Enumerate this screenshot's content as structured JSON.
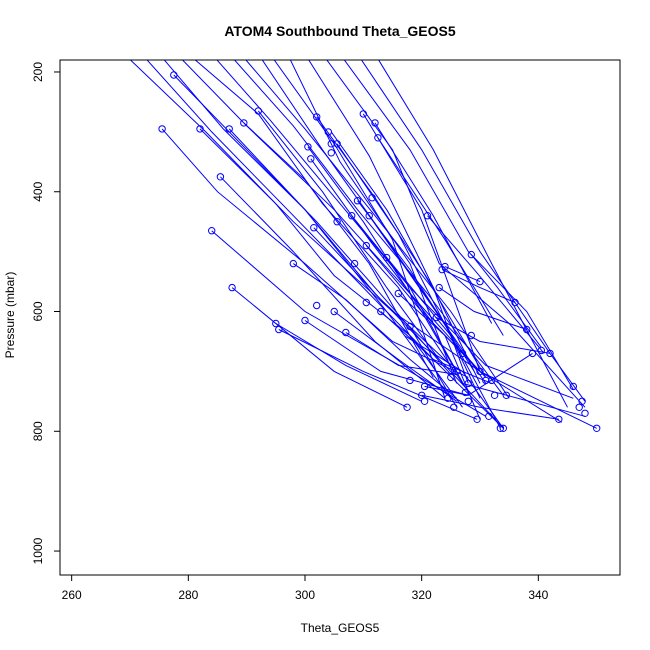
{
  "chart_data": {
    "type": "line",
    "title": "ATOM4 Southbound Theta_GEOS5",
    "xlabel": "Theta_GEOS5",
    "ylabel": "Pressure (mbar)",
    "xlim": [
      258,
      354
    ],
    "ylim": [
      1040,
      180
    ],
    "y_reversed": true,
    "x_ticks": [
      260,
      280,
      300,
      320,
      340
    ],
    "y_ticks": [
      200,
      400,
      600,
      800,
      1000
    ],
    "grid": false,
    "legend": "none",
    "line_color": "#0000ff",
    "profiles": [
      {
        "x": [
          269,
          283,
          298,
          315,
          330,
          350
        ],
        "y": [
          170,
          300,
          450,
          600,
          700,
          795
        ]
      },
      {
        "x": [
          272,
          284,
          296,
          310,
          322,
          334
        ],
        "y": [
          170,
          300,
          420,
          560,
          680,
          795
        ]
      },
      {
        "x": [
          275,
          286,
          300,
          312,
          324,
          334
        ],
        "y": [
          170,
          295,
          430,
          570,
          690,
          795
        ]
      },
      {
        "x": [
          278,
          290,
          305,
          318,
          330,
          344
        ],
        "y": [
          170,
          290,
          430,
          570,
          700,
          785
        ]
      },
      {
        "x": [
          280,
          292,
          303,
          316,
          327,
          348
        ],
        "y": [
          170,
          270,
          420,
          560,
          720,
          775
        ]
      },
      {
        "x": [
          284,
          294,
          306,
          318,
          331,
          346
        ],
        "y": [
          170,
          280,
          420,
          560,
          690,
          745
        ]
      },
      {
        "x": [
          287,
          298,
          309,
          321,
          334
        ],
        "y": [
          170,
          290,
          430,
          570,
          740
        ]
      },
      {
        "x": [
          289,
          300,
          312,
          325,
          335
        ],
        "y": [
          170,
          295,
          440,
          600,
          745
        ]
      },
      {
        "x": [
          292,
          303,
          314,
          324,
          330
        ],
        "y": [
          170,
          330,
          480,
          620,
          745
        ]
      },
      {
        "x": [
          294,
          305,
          315,
          324
        ],
        "y": [
          170,
          320,
          480,
          745
        ]
      },
      {
        "x": [
          297,
          306,
          318,
          326
        ],
        "y": [
          170,
          350,
          520,
          720
        ]
      },
      {
        "x": [
          300,
          311,
          320,
          330
        ],
        "y": [
          170,
          340,
          520,
          720
        ]
      },
      {
        "x": [
          303,
          315,
          323,
          335,
          348
        ],
        "y": [
          170,
          330,
          520,
          620,
          760
        ]
      },
      {
        "x": [
          306,
          318,
          328,
          338,
          346
        ],
        "y": [
          170,
          330,
          500,
          600,
          730
        ]
      },
      {
        "x": [
          309,
          320,
          330,
          342,
          348
        ],
        "y": [
          170,
          330,
          500,
          670,
          750
        ]
      },
      {
        "x": [
          312,
          322,
          332,
          345
        ],
        "y": [
          170,
          330,
          520,
          760
        ]
      },
      {
        "x": [
          275.5,
          285,
          300,
          315,
          328
        ],
        "y": [
          295,
          400,
          520,
          650,
          710
        ]
      },
      {
        "x": [
          277.5,
          290,
          302,
          312,
          325
        ],
        "y": [
          205,
          330,
          450,
          560,
          705
        ]
      },
      {
        "x": [
          282,
          295,
          305,
          318,
          327
        ],
        "y": [
          295,
          420,
          540,
          640,
          760
        ]
      },
      {
        "x": [
          284,
          300,
          318,
          331
        ],
        "y": [
          465,
          600,
          700,
          775
        ]
      },
      {
        "x": [
          285.5,
          298,
          312,
          324
        ],
        "y": [
          375,
          500,
          650,
          745
        ]
      },
      {
        "x": [
          287,
          300,
          314,
          325
        ],
        "y": [
          295,
          430,
          600,
          745
        ]
      },
      {
        "x": [
          287.5,
          305,
          317.5
        ],
        "y": [
          560,
          700,
          760
        ]
      },
      {
        "x": [
          289.5,
          300,
          311,
          322
        ],
        "y": [
          285,
          380,
          520,
          710
        ]
      },
      {
        "x": [
          292,
          303,
          314,
          323
        ],
        "y": [
          265,
          400,
          560,
          680
        ]
      },
      {
        "x": [
          295,
          307,
          320
        ],
        "y": [
          620,
          690,
          750
        ]
      },
      {
        "x": [
          295.5,
          310,
          329.5
        ],
        "y": [
          630,
          700,
          780
        ]
      },
      {
        "x": [
          298,
          307,
          318,
          326
        ],
        "y": [
          520,
          580,
          680,
          745
        ]
      },
      {
        "x": [
          300,
          313,
          328
        ],
        "y": [
          615,
          700,
          740
        ]
      },
      {
        "x": [
          300.5,
          310,
          320,
          331
        ],
        "y": [
          325,
          450,
          600,
          710
        ]
      },
      {
        "x": [
          301,
          311,
          322,
          330
        ],
        "y": [
          345,
          480,
          620,
          700
        ]
      },
      {
        "x": [
          301.5,
          313,
          325
        ],
        "y": [
          460,
          580,
          690
        ]
      },
      {
        "x": [
          302,
          312,
          322,
          328
        ],
        "y": [
          275,
          410,
          560,
          720
        ]
      },
      {
        "x": [
          304.5,
          314,
          323,
          331
        ],
        "y": [
          300,
          430,
          580,
          710
        ]
      },
      {
        "x": [
          305,
          316,
          326
        ],
        "y": [
          600,
          680,
          750
        ]
      },
      {
        "x": [
          305.5,
          316,
          326
        ],
        "y": [
          320,
          470,
          660
        ]
      },
      {
        "x": [
          307,
          316,
          326
        ],
        "y": [
          635,
          690,
          705
        ]
      },
      {
        "x": [
          308,
          318,
          326
        ],
        "y": [
          440,
          560,
          700
        ]
      },
      {
        "x": [
          309,
          318,
          329
        ],
        "y": [
          415,
          530,
          700
        ]
      },
      {
        "x": [
          310,
          320,
          330
        ],
        "y": [
          270,
          430,
          700
        ]
      },
      {
        "x": [
          310.5,
          320,
          328
        ],
        "y": [
          490,
          600,
          735
        ]
      },
      {
        "x": [
          311,
          321,
          331
        ],
        "y": [
          440,
          580,
          720
        ]
      },
      {
        "x": [
          312,
          322,
          332
        ],
        "y": [
          285,
          440,
          620
        ]
      },
      {
        "x": [
          312.5,
          324,
          334
        ],
        "y": [
          310,
          480,
          640
        ]
      },
      {
        "x": [
          313,
          322,
          332
        ],
        "y": [
          600,
          680,
          720
        ]
      },
      {
        "x": [
          314,
          325,
          333.5
        ],
        "y": [
          510,
          640,
          795
        ]
      },
      {
        "x": [
          316,
          324,
          330
        ],
        "y": [
          570,
          640,
          780
        ]
      },
      {
        "x": [
          317,
          327,
          334
        ],
        "y": [
          640,
          700,
          795
        ]
      },
      {
        "x": [
          318,
          326
        ],
        "y": [
          625,
          760
        ]
      },
      {
        "x": [
          320,
          330,
          343.5
        ],
        "y": [
          740,
          760,
          780
        ]
      },
      {
        "x": [
          320.5,
          328,
          339
        ],
        "y": [
          725,
          740,
          670
        ]
      },
      {
        "x": [
          321,
          329,
          341
        ],
        "y": [
          440,
          530,
          670
        ]
      },
      {
        "x": [
          322.5,
          330,
          342
        ],
        "y": [
          610,
          650,
          670
        ]
      },
      {
        "x": [
          323,
          329,
          338
        ],
        "y": [
          560,
          600,
          630
        ]
      },
      {
        "x": [
          323.5,
          330,
          336
        ],
        "y": [
          530,
          560,
          585
        ]
      },
      {
        "x": [
          324,
          330
        ],
        "y": [
          525,
          550
        ]
      },
      {
        "x": [
          328.5,
          333,
          340.5
        ],
        "y": [
          505,
          560,
          660
        ]
      }
    ],
    "points": [
      {
        "x": 277.5,
        "y": 205
      },
      {
        "x": 275.5,
        "y": 295
      },
      {
        "x": 282,
        "y": 295
      },
      {
        "x": 287,
        "y": 295
      },
      {
        "x": 289.5,
        "y": 285
      },
      {
        "x": 292,
        "y": 265
      },
      {
        "x": 285.5,
        "y": 375
      },
      {
        "x": 284,
        "y": 465
      },
      {
        "x": 287.5,
        "y": 560
      },
      {
        "x": 295,
        "y": 620
      },
      {
        "x": 295.5,
        "y": 630
      },
      {
        "x": 298,
        "y": 520
      },
      {
        "x": 300,
        "y": 615
      },
      {
        "x": 300.5,
        "y": 325
      },
      {
        "x": 301,
        "y": 345
      },
      {
        "x": 301.5,
        "y": 460
      },
      {
        "x": 302,
        "y": 275
      },
      {
        "x": 302,
        "y": 590
      },
      {
        "x": 304,
        "y": 300
      },
      {
        "x": 304.5,
        "y": 320
      },
      {
        "x": 304.5,
        "y": 335
      },
      {
        "x": 305,
        "y": 600
      },
      {
        "x": 305.5,
        "y": 320
      },
      {
        "x": 305.5,
        "y": 450
      },
      {
        "x": 307,
        "y": 635
      },
      {
        "x": 308,
        "y": 440
      },
      {
        "x": 308.5,
        "y": 520
      },
      {
        "x": 309,
        "y": 415
      },
      {
        "x": 310,
        "y": 270
      },
      {
        "x": 310.5,
        "y": 490
      },
      {
        "x": 310.5,
        "y": 585
      },
      {
        "x": 311,
        "y": 440
      },
      {
        "x": 311.5,
        "y": 410
      },
      {
        "x": 312,
        "y": 285
      },
      {
        "x": 312.5,
        "y": 310
      },
      {
        "x": 313,
        "y": 600
      },
      {
        "x": 314,
        "y": 510
      },
      {
        "x": 316,
        "y": 570
      },
      {
        "x": 317.5,
        "y": 760
      },
      {
        "x": 318,
        "y": 625
      },
      {
        "x": 318,
        "y": 715
      },
      {
        "x": 320,
        "y": 740
      },
      {
        "x": 320.5,
        "y": 725
      },
      {
        "x": 320.5,
        "y": 750
      },
      {
        "x": 321,
        "y": 440
      },
      {
        "x": 322.5,
        "y": 610
      },
      {
        "x": 323,
        "y": 560
      },
      {
        "x": 323.5,
        "y": 530
      },
      {
        "x": 324,
        "y": 525
      },
      {
        "x": 324.5,
        "y": 745
      },
      {
        "x": 325,
        "y": 710
      },
      {
        "x": 325.5,
        "y": 760
      },
      {
        "x": 326,
        "y": 700
      },
      {
        "x": 327,
        "y": 670
      },
      {
        "x": 327.5,
        "y": 735
      },
      {
        "x": 328,
        "y": 720
      },
      {
        "x": 328,
        "y": 750
      },
      {
        "x": 328.5,
        "y": 505
      },
      {
        "x": 328.5,
        "y": 640
      },
      {
        "x": 329.5,
        "y": 780
      },
      {
        "x": 330,
        "y": 700
      },
      {
        "x": 330,
        "y": 550
      },
      {
        "x": 331,
        "y": 715
      },
      {
        "x": 331.5,
        "y": 775
      },
      {
        "x": 332,
        "y": 715
      },
      {
        "x": 332.5,
        "y": 740
      },
      {
        "x": 333.5,
        "y": 795
      },
      {
        "x": 334,
        "y": 795
      },
      {
        "x": 334.5,
        "y": 740
      },
      {
        "x": 336,
        "y": 585
      },
      {
        "x": 338,
        "y": 630
      },
      {
        "x": 339,
        "y": 670
      },
      {
        "x": 340.5,
        "y": 665
      },
      {
        "x": 342,
        "y": 670
      },
      {
        "x": 343.5,
        "y": 780
      },
      {
        "x": 346,
        "y": 725
      },
      {
        "x": 347,
        "y": 760
      },
      {
        "x": 347.5,
        "y": 750
      },
      {
        "x": 348,
        "y": 770
      },
      {
        "x": 350,
        "y": 795
      }
    ]
  }
}
